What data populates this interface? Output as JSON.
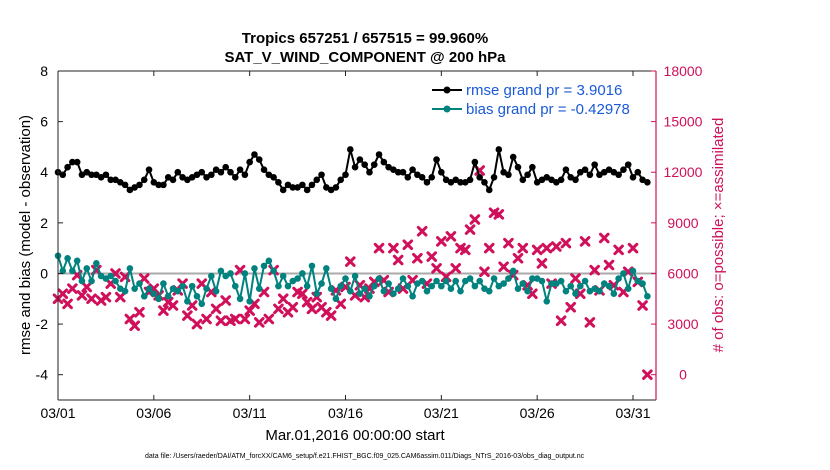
{
  "chart_data": {
    "type": "line",
    "title": "Tropics 657251 / 657515 = 99.960%",
    "subtitle": "SAT_V_WIND_COMPONENT @ 200 hPa",
    "xlabel": "Mar.01,2016 00:00:00 start",
    "ylabel": "rmse and bias (model - observation)",
    "y2label": "# of obs: o=possible; ×=assimilated",
    "footnote": "data file: /Users/raeder/DAI/ATM_forcXX/CAM6_setup/f.e21.FHIST_BGC.f09_025.CAM6assim.011/Diags_NTrS_2016-03/obs_diag_output.nc",
    "xlim": [
      1,
      32.2
    ],
    "ylim": [
      -5,
      8
    ],
    "y2lim": [
      -1500,
      18000
    ],
    "xticks": [
      1,
      6,
      11,
      16,
      21,
      26,
      31
    ],
    "xtick_labels": [
      "03/01",
      "03/06",
      "03/11",
      "03/16",
      "03/21",
      "03/26",
      "03/31"
    ],
    "yticks": [
      -4,
      -2,
      0,
      2,
      4,
      6,
      8
    ],
    "ytick_labels": [
      "-4",
      "-2",
      "0",
      "2",
      "4",
      "6",
      "8"
    ],
    "y2ticks": [
      0,
      3000,
      6000,
      9000,
      12000,
      15000,
      18000
    ],
    "y2tick_labels": [
      "0",
      "3000",
      "6000",
      "9000",
      "12000",
      "15000",
      "18000"
    ],
    "legend": [
      "rmse grand pr = 3.9016",
      "bias grand pr = -0.42978"
    ],
    "legend_position": "top-right",
    "colors": {
      "rmse": "#000000",
      "bias": "#00827f",
      "obs": "#d0105a",
      "zero_line": "#aaaaaa"
    },
    "series": [
      {
        "name": "rmse",
        "x": [
          1.0,
          1.25,
          1.5,
          1.75,
          2.0,
          2.25,
          2.5,
          2.75,
          3.0,
          3.25,
          3.5,
          3.75,
          4.0,
          4.25,
          4.5,
          4.75,
          5.0,
          5.25,
          5.5,
          5.75,
          6.0,
          6.25,
          6.5,
          6.75,
          7.0,
          7.25,
          7.5,
          7.75,
          8.0,
          8.25,
          8.5,
          8.75,
          9.0,
          9.25,
          9.5,
          9.75,
          10.0,
          10.25,
          10.5,
          10.75,
          11.0,
          11.25,
          11.5,
          11.75,
          12.0,
          12.25,
          12.5,
          12.75,
          13.0,
          13.25,
          13.5,
          13.75,
          14.0,
          14.25,
          14.5,
          14.75,
          15.0,
          15.25,
          15.5,
          15.75,
          16.0,
          16.25,
          16.5,
          16.75,
          17.0,
          17.25,
          17.5,
          17.75,
          18.0,
          18.25,
          18.5,
          18.75,
          19.0,
          19.25,
          19.5,
          19.75,
          20.0,
          20.25,
          20.5,
          20.75,
          21.0,
          21.25,
          21.5,
          21.75,
          22.0,
          22.25,
          22.5,
          22.75,
          23.0,
          23.25,
          23.5,
          23.75,
          24.0,
          24.25,
          24.5,
          24.75,
          25.0,
          25.25,
          25.5,
          25.75,
          26.0,
          26.25,
          26.5,
          26.75,
          27.0,
          27.25,
          27.5,
          27.75,
          28.0,
          28.25,
          28.5,
          28.75,
          29.0,
          29.25,
          29.5,
          29.75,
          30.0,
          30.25,
          30.5,
          30.75,
          31.0,
          31.25,
          31.5,
          31.75
        ],
        "values": [
          4.0,
          3.9,
          4.2,
          4.4,
          4.4,
          3.9,
          4.0,
          3.9,
          3.9,
          3.8,
          3.9,
          3.7,
          3.7,
          3.6,
          3.5,
          3.3,
          3.4,
          3.5,
          3.7,
          4.1,
          3.6,
          3.5,
          3.5,
          3.8,
          3.7,
          4.0,
          3.8,
          3.7,
          3.8,
          3.9,
          4.0,
          3.8,
          3.9,
          4.1,
          4.0,
          4.2,
          4.0,
          3.8,
          4.1,
          3.9,
          4.4,
          4.7,
          4.5,
          4.1,
          3.9,
          3.8,
          3.6,
          3.3,
          3.5,
          3.4,
          3.4,
          3.5,
          3.3,
          3.5,
          3.7,
          3.9,
          3.4,
          3.3,
          3.4,
          3.7,
          3.9,
          4.9,
          4.2,
          4.5,
          4.3,
          4.0,
          4.3,
          4.7,
          4.4,
          4.2,
          4.1,
          4.0,
          4.0,
          3.8,
          4.1,
          3.9,
          3.8,
          3.6,
          3.8,
          4.5,
          4.0,
          3.7,
          3.6,
          3.7,
          3.6,
          3.6,
          3.7,
          4.4,
          3.8,
          3.6,
          3.3,
          3.8,
          4.9,
          4.0,
          3.9,
          4.6,
          4.2,
          3.7,
          3.9,
          4.2,
          3.6,
          3.7,
          3.8,
          3.7,
          3.6,
          3.7,
          4.1,
          3.8,
          3.7,
          4.0,
          4.1,
          3.9,
          4.3,
          3.9,
          4.0,
          4.1,
          4.0,
          3.9,
          4.1,
          4.3,
          3.8,
          4.0,
          3.7,
          3.6
        ]
      },
      {
        "name": "bias",
        "x": [
          1.0,
          1.25,
          1.5,
          1.75,
          2.0,
          2.25,
          2.5,
          2.75,
          3.0,
          3.25,
          3.5,
          3.75,
          4.0,
          4.25,
          4.5,
          4.75,
          5.0,
          5.25,
          5.5,
          5.75,
          6.0,
          6.25,
          6.5,
          6.75,
          7.0,
          7.25,
          7.5,
          7.75,
          8.0,
          8.25,
          8.5,
          8.75,
          9.0,
          9.25,
          9.5,
          9.75,
          10.0,
          10.25,
          10.5,
          10.75,
          11.0,
          11.25,
          11.5,
          11.75,
          12.0,
          12.25,
          12.5,
          12.75,
          13.0,
          13.25,
          13.5,
          13.75,
          14.0,
          14.25,
          14.5,
          14.75,
          15.0,
          15.25,
          15.5,
          15.75,
          16.0,
          16.25,
          16.5,
          16.75,
          17.0,
          17.25,
          17.5,
          17.75,
          18.0,
          18.25,
          18.5,
          18.75,
          19.0,
          19.25,
          19.5,
          19.75,
          20.0,
          20.25,
          20.5,
          20.75,
          21.0,
          21.25,
          21.5,
          21.75,
          22.0,
          22.25,
          22.5,
          22.75,
          23.0,
          23.25,
          23.5,
          23.75,
          24.0,
          24.25,
          24.5,
          24.75,
          25.0,
          25.25,
          25.5,
          25.75,
          26.0,
          26.25,
          26.5,
          26.75,
          27.0,
          27.25,
          27.5,
          27.75,
          28.0,
          28.25,
          28.5,
          28.75,
          29.0,
          29.25,
          29.5,
          29.75,
          30.0,
          30.25,
          30.5,
          30.75,
          31.0,
          31.25,
          31.5,
          31.75
        ],
        "values": [
          0.7,
          0.1,
          0.6,
          0.1,
          0.5,
          -0.3,
          0.2,
          -0.3,
          0.4,
          -0.1,
          -0.2,
          -0.1,
          -0.3,
          -0.6,
          -0.7,
          0.2,
          -0.6,
          -0.4,
          -0.9,
          -0.6,
          -0.8,
          -1.0,
          -0.4,
          -0.9,
          -0.6,
          -0.7,
          -0.5,
          -1.1,
          -0.5,
          -0.9,
          -1.2,
          -0.6,
          -0.1,
          -0.7,
          0.1,
          -0.1,
          0.0,
          -0.5,
          -1.0,
          0.0,
          -1.1,
          0.2,
          -0.6,
          0.3,
          0.5,
          0.1,
          -0.5,
          -0.1,
          -0.5,
          -0.3,
          -0.2,
          0.0,
          -0.5,
          0.3,
          -0.8,
          -0.4,
          0.2,
          -0.6,
          -1.0,
          -0.5,
          -0.2,
          -0.7,
          -0.1,
          -0.8,
          -0.6,
          -0.9,
          -0.5,
          -0.2,
          -0.7,
          -0.4,
          -0.8,
          -0.6,
          -0.2,
          -0.5,
          -0.9,
          -0.4,
          -0.3,
          -0.7,
          -0.5,
          -0.3,
          -0.5,
          -0.3,
          -0.6,
          -0.3,
          -0.7,
          -0.3,
          -0.2,
          -0.5,
          -0.3,
          -0.6,
          -0.7,
          -0.2,
          -0.5,
          -0.4,
          -0.2,
          0.1,
          -0.6,
          -0.4,
          -0.7,
          -0.2,
          -0.2,
          -0.3,
          -1.1,
          -0.4,
          -0.4,
          -0.3,
          -0.7,
          -0.5,
          -0.8,
          -0.5,
          -0.3,
          -0.7,
          -0.6,
          -0.7,
          -0.4,
          -0.5,
          -0.8,
          -0.2,
          0.0,
          -0.6,
          0.1,
          -0.3,
          -0.4,
          -0.9
        ]
      },
      {
        "name": "obs_assimilated",
        "x": [
          1.0,
          1.25,
          1.5,
          1.75,
          2.0,
          2.25,
          2.5,
          2.75,
          3.0,
          3.25,
          3.5,
          3.75,
          4.0,
          4.25,
          4.5,
          4.75,
          5.0,
          5.25,
          5.5,
          5.75,
          6.0,
          6.25,
          6.5,
          6.75,
          7.0,
          7.25,
          7.5,
          7.75,
          8.0,
          8.25,
          8.5,
          8.75,
          9.0,
          9.25,
          9.5,
          9.75,
          10.0,
          10.25,
          10.5,
          10.75,
          11.0,
          11.25,
          11.5,
          11.75,
          12.0,
          12.25,
          12.5,
          12.75,
          13.0,
          13.25,
          13.5,
          13.75,
          14.0,
          14.25,
          14.5,
          14.75,
          15.0,
          15.25,
          15.5,
          15.75,
          16.0,
          16.25,
          16.5,
          16.75,
          17.0,
          17.25,
          17.5,
          17.75,
          18.0,
          18.25,
          18.5,
          18.75,
          19.0,
          19.25,
          19.5,
          19.75,
          20.0,
          20.25,
          20.5,
          20.75,
          21.0,
          21.25,
          21.5,
          21.75,
          22.0,
          22.25,
          22.5,
          22.75,
          23.0,
          23.25,
          23.5,
          23.75,
          24.0,
          24.25,
          24.5,
          24.75,
          25.0,
          25.25,
          25.5,
          25.75,
          26.0,
          26.25,
          26.5,
          26.75,
          27.0,
          27.25,
          27.5,
          27.75,
          28.0,
          28.25,
          28.5,
          28.75,
          29.0,
          29.25,
          29.5,
          29.75,
          30.0,
          30.25,
          30.5,
          30.75,
          31.0,
          31.25,
          31.5,
          31.75
        ],
        "values": [
          4500,
          4800,
          4200,
          5100,
          5900,
          4700,
          5200,
          4500,
          6200,
          4400,
          4600,
          5400,
          6000,
          4600,
          5800,
          3300,
          2900,
          3700,
          5700,
          4900,
          5100,
          4700,
          3800,
          4300,
          4100,
          5000,
          5400,
          3500,
          4100,
          3000,
          5400,
          3300,
          4900,
          3900,
          3200,
          4400,
          3200,
          3300,
          6200,
          3300,
          3800,
          4200,
          3100,
          4900,
          3300,
          6200,
          3900,
          4500,
          3700,
          4000,
          4900,
          4800,
          4300,
          3900,
          4600,
          4000,
          3700,
          3500,
          5000,
          4200,
          5200,
          6700,
          4700,
          5300,
          4600,
          5100,
          5500,
          7500,
          5600,
          4900,
          7500,
          6800,
          5100,
          7700,
          5600,
          6900,
          8500,
          5400,
          7000,
          6300,
          7900,
          5800,
          8200,
          6300,
          7500,
          7400,
          8600,
          9200,
          12100,
          6100,
          7500,
          9600,
          9500,
          6400,
          7800,
          5900,
          6900,
          7500,
          5300,
          4800,
          7400,
          6600,
          7500,
          5400,
          7600,
          3200,
          7800,
          4000,
          5700,
          4800,
          7900,
          3100,
          6200,
          5000,
          8100,
          6500,
          5300,
          7400,
          4900,
          6100,
          7500,
          5500,
          4100,
          0
        ]
      }
    ]
  }
}
